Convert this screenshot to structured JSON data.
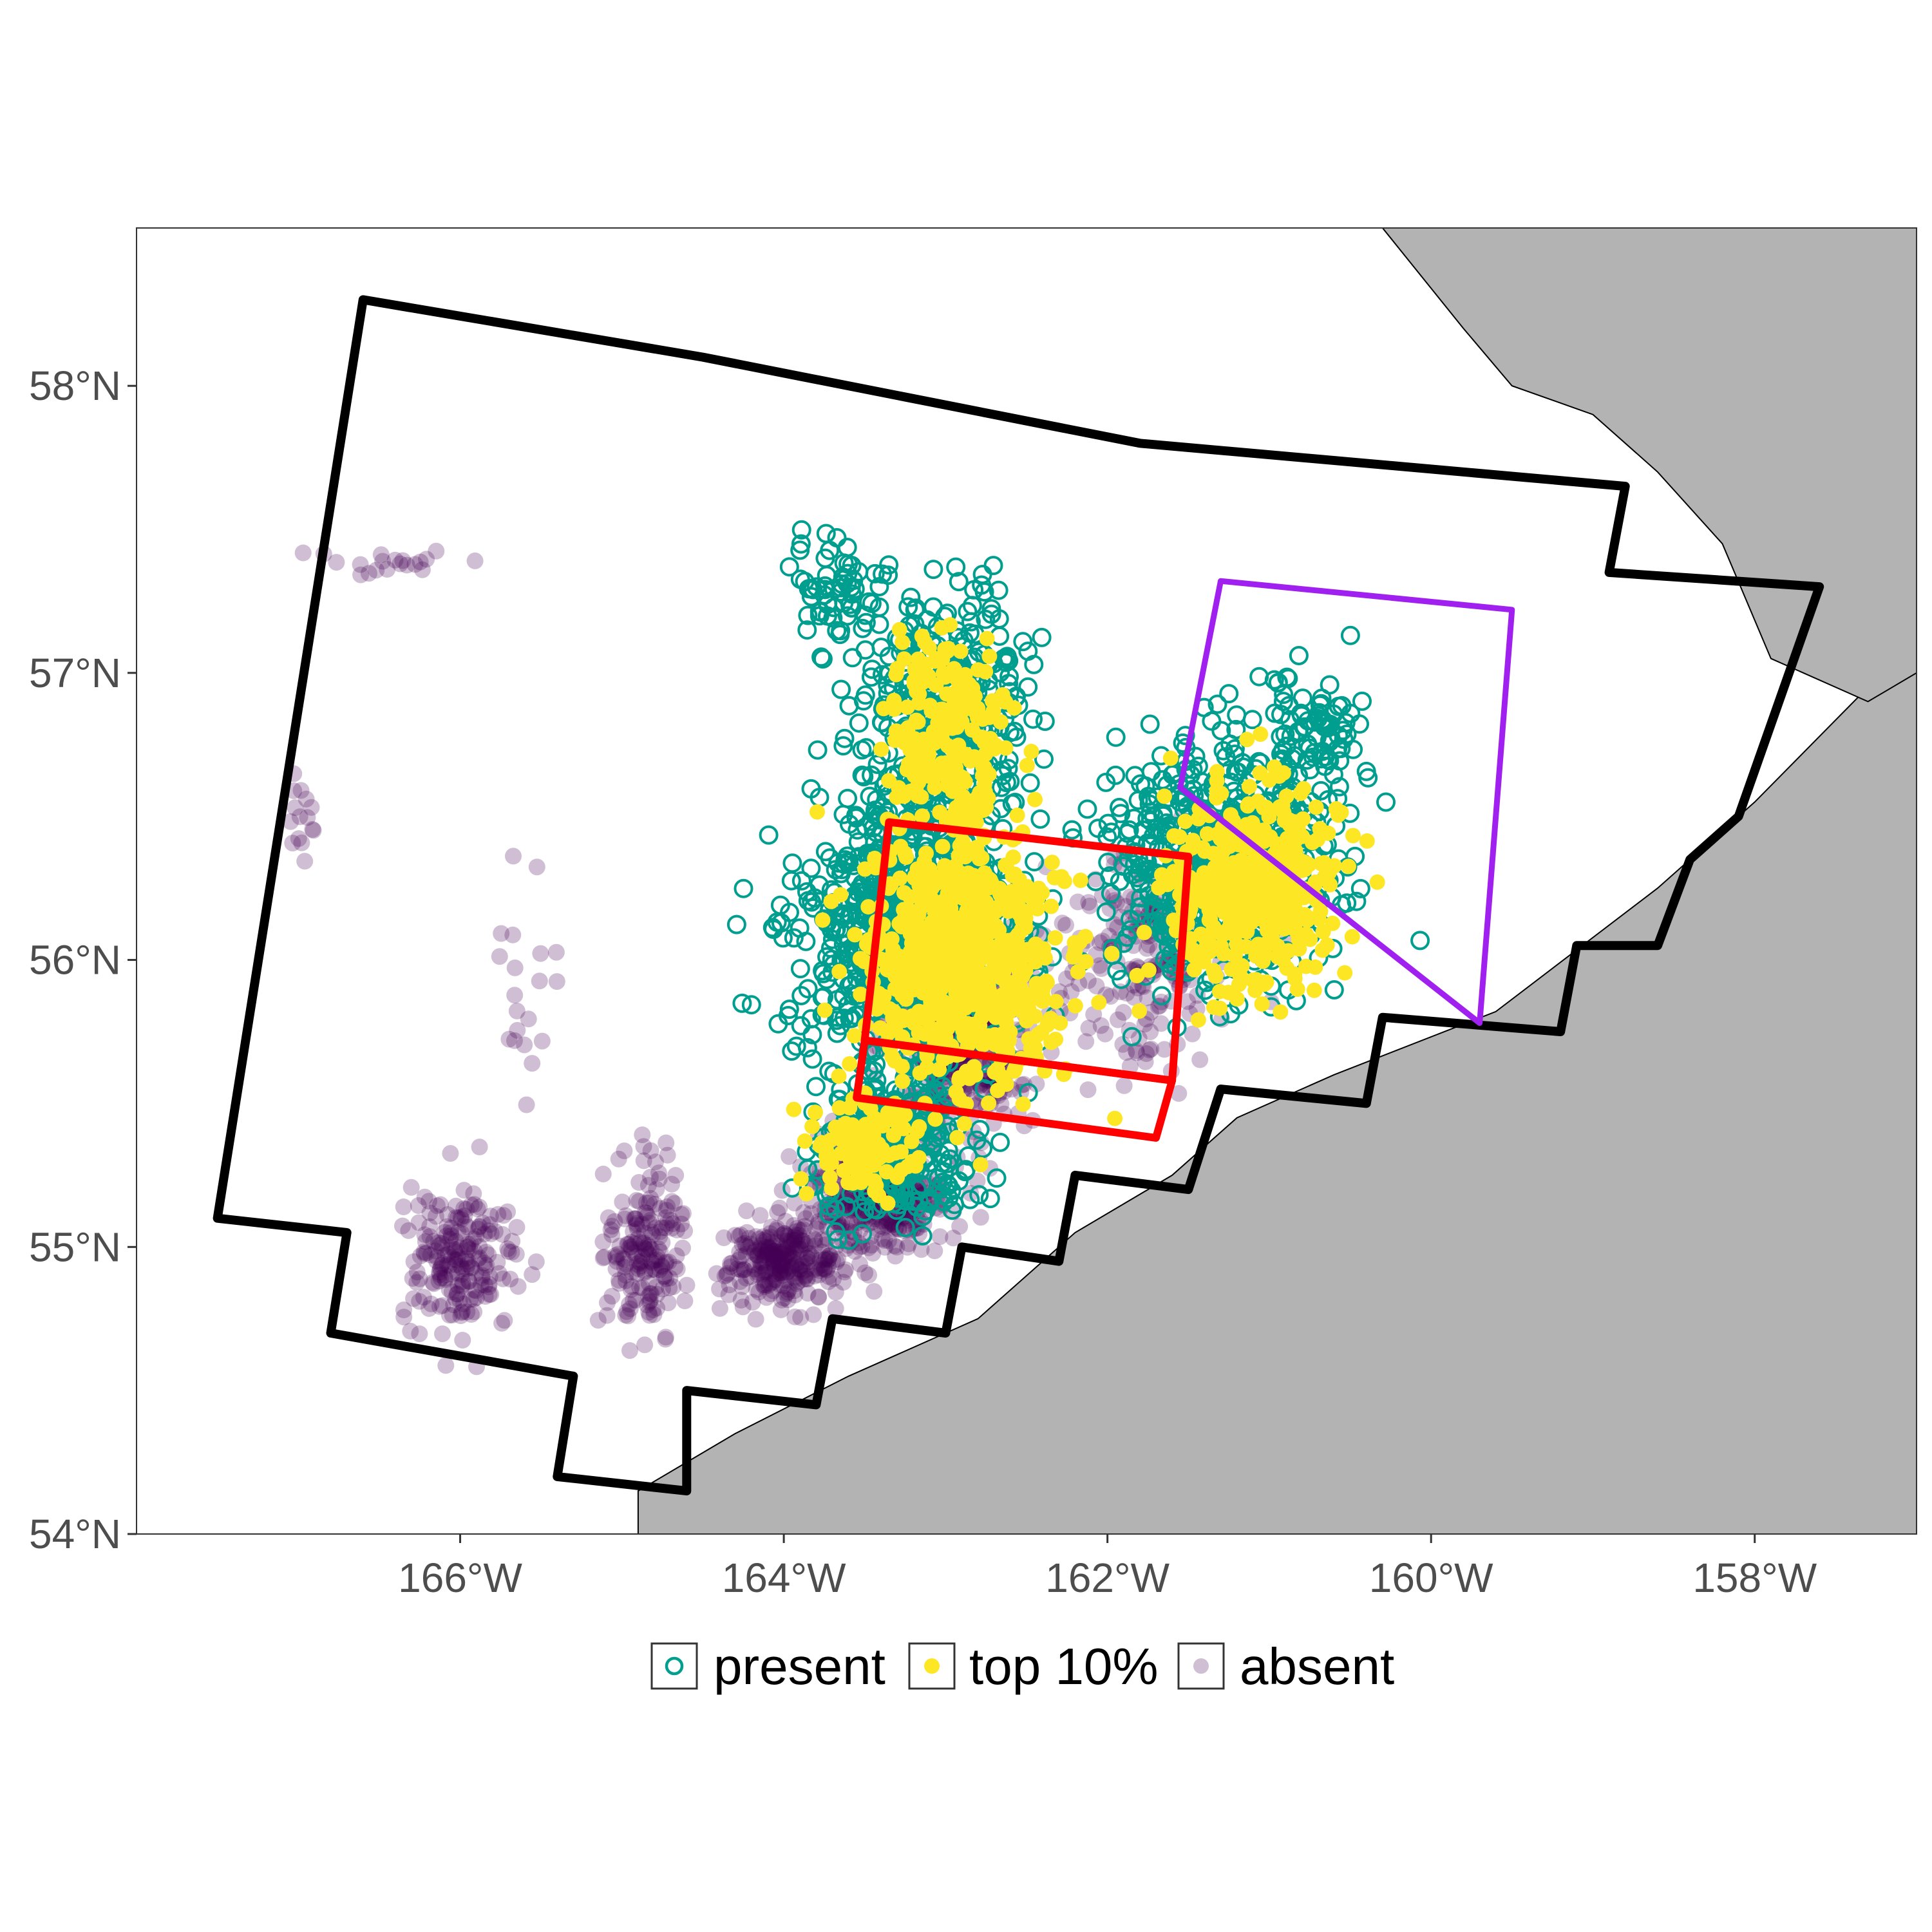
{
  "chart_data": {
    "type": "scatter",
    "title": "",
    "xlabel": "",
    "ylabel": "",
    "xlim": [
      -168.0,
      -157.0
    ],
    "ylim": [
      54.0,
      58.55
    ],
    "x_ticks": [
      {
        "value": -166,
        "label": "166°W"
      },
      {
        "value": -164,
        "label": "164°W"
      },
      {
        "value": -162,
        "label": "162°W"
      },
      {
        "value": -160,
        "label": "160°W"
      },
      {
        "value": -158,
        "label": "158°W"
      }
    ],
    "y_ticks": [
      {
        "value": 54,
        "label": "54°N"
      },
      {
        "value": 55,
        "label": "55°N"
      },
      {
        "value": 56,
        "label": "56°N"
      },
      {
        "value": 57,
        "label": "57°N"
      },
      {
        "value": 58,
        "label": "58°N"
      }
    ],
    "grid": false,
    "legend_position": "bottom",
    "colors": {
      "present": "#009e8f",
      "top10": "#fde725",
      "absent": "#440154",
      "black_boundary": "#000000",
      "red_box": "#ff0000",
      "purple_box": "#a020f0",
      "land": "#b3b3b3"
    },
    "series": [
      {
        "name": "present",
        "marker": "open-circle",
        "color": "#009e8f"
      },
      {
        "name": "top 10%",
        "marker": "filled-circle",
        "color": "#fde725"
      },
      {
        "name": "absent",
        "marker": "filled-circle",
        "color": "#440154",
        "opacity": 0.25
      }
    ],
    "boundary_polygon": [
      [
        -166.6,
        58.3
      ],
      [
        -164.5,
        58.1
      ],
      [
        -161.8,
        57.8
      ],
      [
        -158.8,
        57.65
      ],
      [
        -158.9,
        57.35
      ],
      [
        -157.6,
        57.3
      ],
      [
        -158.1,
        56.5
      ],
      [
        -158.4,
        56.35
      ],
      [
        -158.6,
        56.05
      ],
      [
        -159.1,
        56.05
      ],
      [
        -159.2,
        55.75
      ],
      [
        -160.3,
        55.8
      ],
      [
        -160.4,
        55.5
      ],
      [
        -161.3,
        55.55
      ],
      [
        -161.5,
        55.2
      ],
      [
        -162.2,
        55.25
      ],
      [
        -162.3,
        54.95
      ],
      [
        -162.9,
        55.0
      ],
      [
        -163.0,
        54.7
      ],
      [
        -163.7,
        54.75
      ],
      [
        -163.8,
        54.45
      ],
      [
        -164.6,
        54.5
      ],
      [
        -164.6,
        54.15
      ],
      [
        -165.4,
        54.2
      ],
      [
        -165.3,
        54.55
      ],
      [
        -166.8,
        54.7
      ],
      [
        -166.7,
        55.05
      ],
      [
        -167.5,
        55.1
      ]
    ],
    "red_boxes": [
      [
        [
          -163.35,
          56.48
        ],
        [
          -161.5,
          56.36
        ],
        [
          -161.6,
          55.58
        ],
        [
          -163.5,
          55.72
        ]
      ],
      [
        [
          -163.5,
          55.72
        ],
        [
          -161.6,
          55.58
        ],
        [
          -161.7,
          55.38
        ],
        [
          -163.55,
          55.52
        ]
      ]
    ],
    "purple_box": [
      [
        -161.3,
        57.32
      ],
      [
        -159.5,
        57.22
      ],
      [
        -159.7,
        55.78
      ],
      [
        -161.55,
        56.6
      ]
    ],
    "present_clusters": [
      {
        "lon": -163.2,
        "lat": 56.1,
        "sx": 0.55,
        "sy": 0.42,
        "n": 900
      },
      {
        "lon": -161.3,
        "lat": 56.35,
        "sx": 0.55,
        "sy": 0.35,
        "n": 650
      },
      {
        "lon": -163.0,
        "lat": 56.9,
        "sx": 0.45,
        "sy": 0.3,
        "n": 350
      },
      {
        "lon": -163.3,
        "lat": 55.35,
        "sx": 0.4,
        "sy": 0.2,
        "n": 300
      },
      {
        "lon": -163.7,
        "lat": 57.3,
        "sx": 0.25,
        "sy": 0.12,
        "n": 60
      },
      {
        "lon": -160.7,
        "lat": 56.8,
        "sx": 0.3,
        "sy": 0.2,
        "n": 80
      }
    ],
    "top10_clusters": [
      {
        "lon": -162.9,
        "lat": 56.0,
        "sx": 0.5,
        "sy": 0.35,
        "n": 650
      },
      {
        "lon": -161.1,
        "lat": 56.25,
        "sx": 0.45,
        "sy": 0.3,
        "n": 400
      },
      {
        "lon": -163.0,
        "lat": 56.8,
        "sx": 0.3,
        "sy": 0.3,
        "n": 200
      },
      {
        "lon": -163.5,
        "lat": 55.35,
        "sx": 0.3,
        "sy": 0.15,
        "n": 120
      }
    ],
    "absent_clusters": [
      {
        "lon": -162.9,
        "lat": 55.75,
        "sx": 0.35,
        "sy": 0.3,
        "n": 450
      },
      {
        "lon": -163.4,
        "lat": 55.2,
        "sx": 0.35,
        "sy": 0.18,
        "n": 350
      },
      {
        "lon": -164.0,
        "lat": 54.95,
        "sx": 0.3,
        "sy": 0.12,
        "n": 280
      },
      {
        "lon": -164.85,
        "lat": 55.0,
        "sx": 0.2,
        "sy": 0.25,
        "n": 180
      },
      {
        "lon": -166.0,
        "lat": 54.95,
        "sx": 0.3,
        "sy": 0.2,
        "n": 200
      },
      {
        "lon": -161.8,
        "lat": 56.0,
        "sx": 0.5,
        "sy": 0.3,
        "n": 200
      },
      {
        "lon": -166.4,
        "lat": 57.38,
        "sx": 0.35,
        "sy": 0.04,
        "n": 20
      },
      {
        "lon": -167.0,
        "lat": 56.5,
        "sx": 0.1,
        "sy": 0.2,
        "n": 15
      },
      {
        "lon": -165.6,
        "lat": 55.9,
        "sx": 0.2,
        "sy": 0.3,
        "n": 20
      }
    ],
    "land": {
      "alaska_peninsula": [
        [
          -164.9,
          54.15
        ],
        [
          -164.3,
          54.35
        ],
        [
          -163.6,
          54.55
        ],
        [
          -162.8,
          54.75
        ],
        [
          -162.2,
          55.05
        ],
        [
          -161.6,
          55.25
        ],
        [
          -161.2,
          55.45
        ],
        [
          -160.6,
          55.6
        ],
        [
          -159.6,
          55.82
        ],
        [
          -158.6,
          56.25
        ],
        [
          -158.0,
          56.55
        ],
        [
          -157.3,
          56.95
        ],
        [
          -157.0,
          57.2
        ],
        [
          -157.0,
          54.0
        ],
        [
          -164.9,
          54.0
        ]
      ],
      "north_coast": [
        [
          -160.3,
          58.55
        ],
        [
          -159.8,
          58.2
        ],
        [
          -159.5,
          58.0
        ],
        [
          -159.0,
          57.9
        ],
        [
          -158.6,
          57.7
        ],
        [
          -158.2,
          57.45
        ],
        [
          -157.9,
          57.05
        ],
        [
          -157.3,
          56.9
        ],
        [
          -157.0,
          57.0
        ],
        [
          -157.0,
          58.55
        ]
      ]
    }
  },
  "legend": {
    "items": [
      {
        "label": "present",
        "key": "present"
      },
      {
        "label": "top 10%",
        "key": "top10"
      },
      {
        "label": "absent",
        "key": "absent"
      }
    ]
  }
}
